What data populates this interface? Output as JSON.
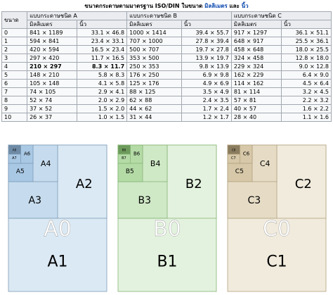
{
  "caption": {
    "text": "ขนาดกระดาษตามมาตรฐาน ISO/DIN ในขนาด",
    "unit_mm": "มิลลิเมตร",
    "and": "และ",
    "unit_in": "นิ้ว"
  },
  "table": {
    "col_size": "ขนาด",
    "series": [
      {
        "title": "แบบกระดาษชนิด A",
        "mm": "มิลลิเมตร",
        "in": "นิ้ว"
      },
      {
        "title": "แบบกระดาษชนิด B",
        "mm": "มิลลิเมตร",
        "in": "นิ้ว"
      },
      {
        "title": "แบบกระดาษชนิด C",
        "mm": "มิลลิเมตร",
        "in": "นิ้ว"
      }
    ],
    "rows": [
      {
        "n": "0",
        "a_mm": "841 × 1189",
        "a_in": "33.1 × 46.8",
        "b_mm": "1000 × 1414",
        "b_in": "39.4 × 55.7",
        "c_mm": "917 × 1297",
        "c_in": "36.1 × 51.1"
      },
      {
        "n": "1",
        "a_mm": "594 × 841",
        "a_in": "23.4 × 33.1",
        "b_mm": "707 × 1000",
        "b_in": "27.8 × 39.4",
        "c_mm": "648 × 917",
        "c_in": "25.5 × 36.1"
      },
      {
        "n": "2",
        "a_mm": "420 × 594",
        "a_in": "16.5 × 23.4",
        "b_mm": "500 × 707",
        "b_in": "19.7 × 27.8",
        "c_mm": "458 × 648",
        "c_in": "18.0 × 25.5"
      },
      {
        "n": "3",
        "a_mm": "297 × 420",
        "a_in": "11.7 × 16.5",
        "b_mm": "353 × 500",
        "b_in": "13.9 × 19.7",
        "c_mm": "324 × 458",
        "c_in": "12.8 × 18.0"
      },
      {
        "n": "4",
        "a_mm": "210 × 297",
        "a_in": "8.3 × 11.7",
        "b_mm": "250 × 353",
        "b_in": "9.8 × 13.9",
        "c_mm": "229 × 324",
        "c_in": "9.0 × 12.8"
      },
      {
        "n": "5",
        "a_mm": "148 × 210",
        "a_in": "5.8 × 8.3",
        "b_mm": "176 × 250",
        "b_in": "6.9 × 9.8",
        "c_mm": "162 × 229",
        "c_in": "6.4 × 9.0"
      },
      {
        "n": "6",
        "a_mm": "105 × 148",
        "a_in": "4.1 × 5.8",
        "b_mm": "125 × 176",
        "b_in": "4.9 × 6.9",
        "c_mm": "114 × 162",
        "c_in": "4.5 × 6.4"
      },
      {
        "n": "7",
        "a_mm": "74 × 105",
        "a_in": "2.9 × 4.1",
        "b_mm": "88 × 125",
        "b_in": "3.5 × 4.9",
        "c_mm": "81 × 114",
        "c_in": "3.2 × 4.5"
      },
      {
        "n": "8",
        "a_mm": "52 × 74",
        "a_in": "2.0 × 2.9",
        "b_mm": "62 × 88",
        "b_in": "2.4 × 3.5",
        "c_mm": "57 × 81",
        "c_in": "2.2 × 3.2"
      },
      {
        "n": "9",
        "a_mm": "37 × 52",
        "a_in": "1.5 × 2.0",
        "b_mm": "44 × 62",
        "b_in": "1.7 × 2.4",
        "c_mm": "40 × 57",
        "c_in": "1.6 × 2.2"
      },
      {
        "n": "10",
        "a_mm": "26 × 37",
        "a_in": "1.0 × 1.5",
        "b_mm": "31 × 44",
        "b_in": "1.2 × 1.7",
        "c_mm": "28 × 40",
        "c_in": "1.1 × 1.6"
      }
    ]
  },
  "diagrams": [
    {
      "series": "A",
      "colors": {
        "outer": "#dbe9f4",
        "mid": "#c6dcee",
        "inner": "#a9c8e4",
        "dark": "#6e8aa5",
        "stroke": "#7d9bb6",
        "ghost": "#ffffff"
      },
      "labels": {
        "l0": "A0",
        "l1": "A1",
        "l2": "A2",
        "l3": "A3",
        "l4": "A4",
        "l5": "A5",
        "l6": "A6",
        "l7": "A7",
        "l8": "A8"
      }
    },
    {
      "series": "B",
      "colors": {
        "outer": "#e3f2de",
        "mid": "#cfe8c6",
        "inner": "#b4dba6",
        "dark": "#6d9b5c",
        "stroke": "#86b575",
        "ghost": "#ffffff"
      },
      "labels": {
        "l0": "B0",
        "l1": "B1",
        "l2": "B2",
        "l3": "B3",
        "l4": "B4",
        "l5": "B5",
        "l6": "B6",
        "l7": "B7",
        "l8": "B8"
      }
    },
    {
      "series": "C",
      "colors": {
        "outer": "#f1ebdd",
        "mid": "#e6dcc6",
        "inner": "#d6c8a8",
        "dark": "#8a7c5f",
        "stroke": "#b2a27f",
        "ghost": "#ffffff"
      },
      "labels": {
        "l0": "C0",
        "l1": "C1",
        "l2": "C2",
        "l3": "C3",
        "l4": "C4",
        "l5": "C5",
        "l6": "C6",
        "l7": "C7",
        "l8": "C8"
      }
    }
  ]
}
